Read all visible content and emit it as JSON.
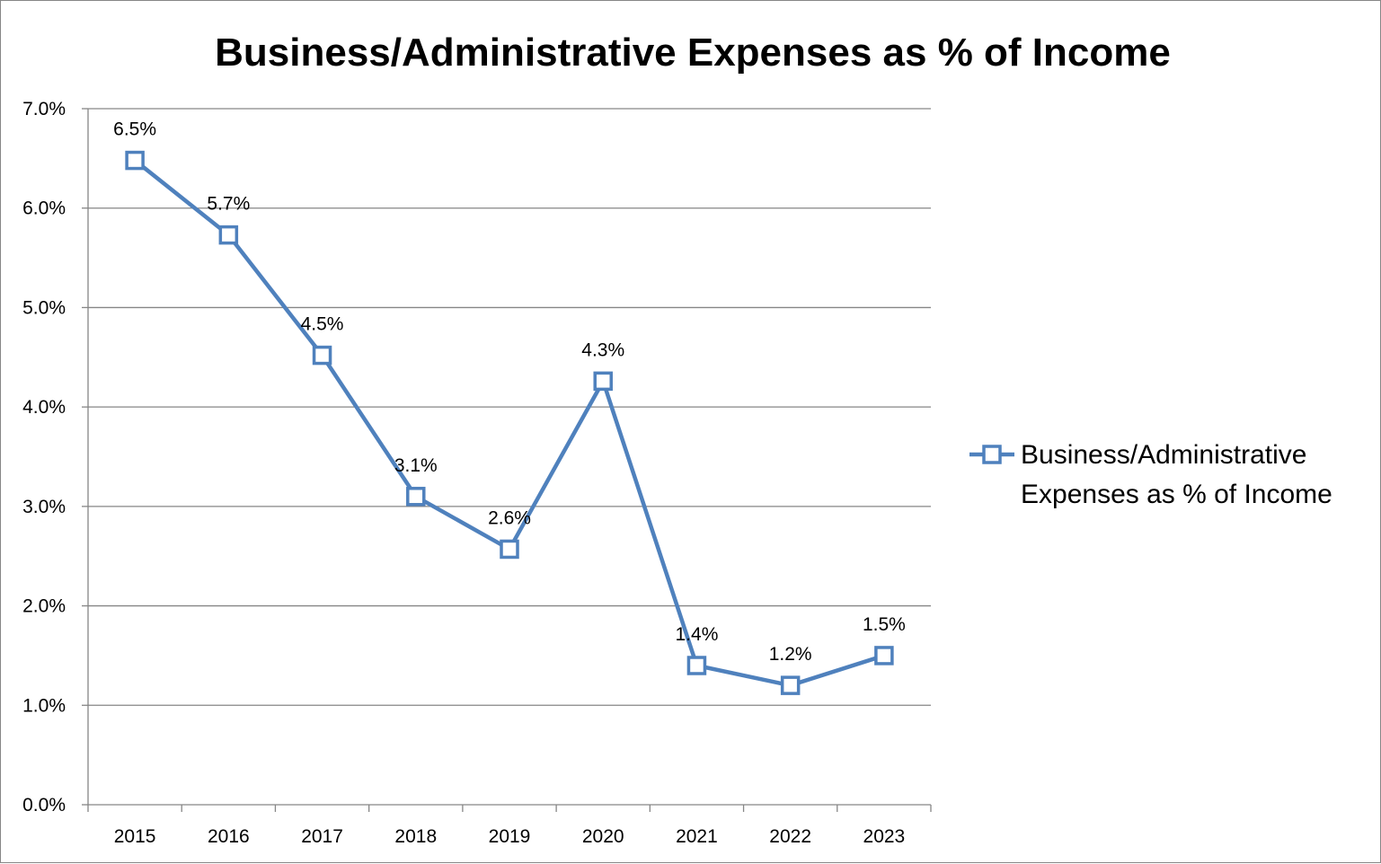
{
  "chart_data": {
    "type": "line",
    "title": "Business/Administrative Expenses as % of Income",
    "categories": [
      "2015",
      "2016",
      "2017",
      "2018",
      "2019",
      "2020",
      "2021",
      "2022",
      "2023"
    ],
    "series": [
      {
        "name": "Business/Administrative Expenses as % of Income",
        "name_lines": [
          "Business/Administrative",
          "Expenses as % of Income"
        ],
        "values": [
          6.48,
          5.73,
          4.52,
          3.1,
          2.57,
          4.26,
          1.4,
          1.2,
          1.5
        ],
        "data_labels": [
          "6.5%",
          "5.7%",
          "4.5%",
          "3.1%",
          "2.6%",
          "4.3%",
          "1.4%",
          "1.2%",
          "1.5%"
        ],
        "color": "#4F81BD",
        "marker": "square-hollow"
      }
    ],
    "ylim": [
      0,
      7
    ],
    "yticks": [
      "0.0%",
      "1.0%",
      "2.0%",
      "3.0%",
      "4.0%",
      "5.0%",
      "6.0%",
      "7.0%"
    ],
    "xlabel": "",
    "ylabel": "",
    "grid": "horizontal",
    "legend": "right"
  }
}
